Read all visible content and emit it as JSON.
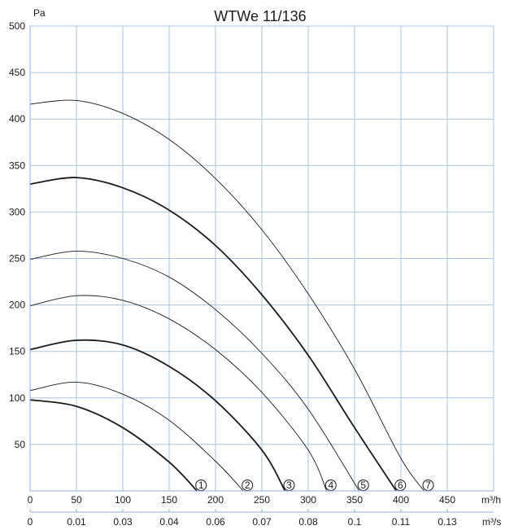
{
  "chart_data": {
    "type": "line",
    "title": "WTWe 11/136",
    "ylabel": "Pa",
    "x_unit_primary": "m³/h",
    "x_unit_secondary": "m³/s",
    "xlim": [
      0,
      500
    ],
    "ylim": [
      0,
      500
    ],
    "x_ticks": [
      0,
      50,
      100,
      150,
      200,
      250,
      300,
      350,
      400,
      450
    ],
    "y_ticks": [
      50,
      100,
      150,
      200,
      250,
      300,
      350,
      400,
      450,
      500
    ],
    "x_ticks_secondary": [
      "0",
      "0.01",
      "0.03",
      "0.04",
      "0.06",
      "0.07",
      "0.08",
      "0.1",
      "0.11",
      "0.13"
    ],
    "grid": true,
    "series": [
      {
        "label": "1",
        "bold": true,
        "x": [
          0,
          50,
          100,
          150,
          180
        ],
        "y": [
          98,
          91,
          68,
          31,
          0
        ]
      },
      {
        "label": "2",
        "bold": false,
        "x": [
          0,
          50,
          100,
          150,
          200,
          230
        ],
        "y": [
          108,
          117,
          104,
          76,
          32,
          0
        ]
      },
      {
        "label": "3",
        "bold": true,
        "x": [
          0,
          50,
          100,
          150,
          200,
          250,
          275
        ],
        "y": [
          152,
          162,
          157,
          134,
          97,
          44,
          0
        ]
      },
      {
        "label": "4",
        "bold": false,
        "x": [
          0,
          50,
          100,
          150,
          200,
          250,
          300,
          320
        ],
        "y": [
          199,
          210,
          205,
          185,
          152,
          106,
          44,
          0
        ]
      },
      {
        "label": "5",
        "bold": false,
        "x": [
          0,
          50,
          100,
          150,
          200,
          250,
          300,
          355
        ],
        "y": [
          249,
          258,
          250,
          230,
          195,
          148,
          88,
          0
        ]
      },
      {
        "label": "6",
        "bold": true,
        "x": [
          0,
          50,
          100,
          150,
          200,
          250,
          300,
          350,
          395
        ],
        "y": [
          330,
          337,
          326,
          302,
          264,
          211,
          146,
          68,
          0
        ]
      },
      {
        "label": "7",
        "bold": false,
        "x": [
          0,
          50,
          100,
          150,
          200,
          250,
          300,
          350,
          400,
          425
        ],
        "y": [
          416,
          420,
          406,
          378,
          336,
          281,
          212,
          131,
          35,
          0
        ]
      }
    ]
  },
  "colors": {
    "grid": "#a9c3e2",
    "axis": "#8fb0d6",
    "curve": "#1a1a1a"
  }
}
